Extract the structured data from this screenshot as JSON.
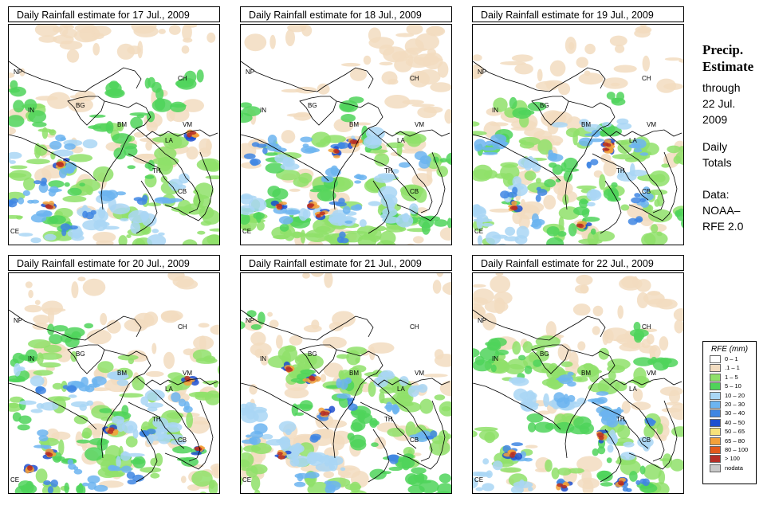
{
  "panels": [
    {
      "title": "Daily Rainfall estimate for  17 Jul., 2009",
      "seed": 17
    },
    {
      "title": "Daily Rainfall estimate for  18 Jul., 2009",
      "seed": 18
    },
    {
      "title": "Daily Rainfall estimate for  19 Jul., 2009",
      "seed": 19
    },
    {
      "title": "Daily Rainfall estimate for  20 Jul., 2009",
      "seed": 20
    },
    {
      "title": "Daily Rainfall estimate for  21 Jul., 2009",
      "seed": 21
    },
    {
      "title": "Daily Rainfall estimate for  22 Jul., 2009",
      "seed": 22
    }
  ],
  "region_labels": [
    "NP",
    "CH",
    "IN",
    "BG",
    "BM",
    "VM",
    "LA",
    "TH",
    "CB",
    "CE"
  ],
  "side": {
    "title_line1": "Precip.",
    "title_line2": "Estimate",
    "through_line1": "through",
    "through_line2": "22 Jul.",
    "through_line3": "2009",
    "totals_line1": "Daily",
    "totals_line2": "Totals",
    "data_line1": "Data:",
    "data_line2": "NOAA–",
    "data_line3": "RFE 2.0"
  },
  "legend": {
    "title": "RFE (mm)",
    "items": [
      {
        "label": "0 – 1",
        "color": "#ffffff"
      },
      {
        "label": ".1 – 1",
        "color": "#f2dcc0"
      },
      {
        "label": "1 – 5",
        "color": "#8fe06a"
      },
      {
        "label": "5 – 10",
        "color": "#4fd35a"
      },
      {
        "label": "10 – 20",
        "color": "#a9d6f5"
      },
      {
        "label": "20 – 30",
        "color": "#6cb4f0"
      },
      {
        "label": "30 – 40",
        "color": "#3f86e3"
      },
      {
        "label": "40 – 50",
        "color": "#1e4fcf"
      },
      {
        "label": "50 – 65",
        "color": "#f7e27a"
      },
      {
        "label": "65 – 80",
        "color": "#f3a13a"
      },
      {
        "label": "80 – 100",
        "color": "#e25a1c"
      },
      {
        "label": "> 100",
        "color": "#b52e26"
      },
      {
        "label": "nodata",
        "color": "#c9c9c9"
      }
    ]
  }
}
